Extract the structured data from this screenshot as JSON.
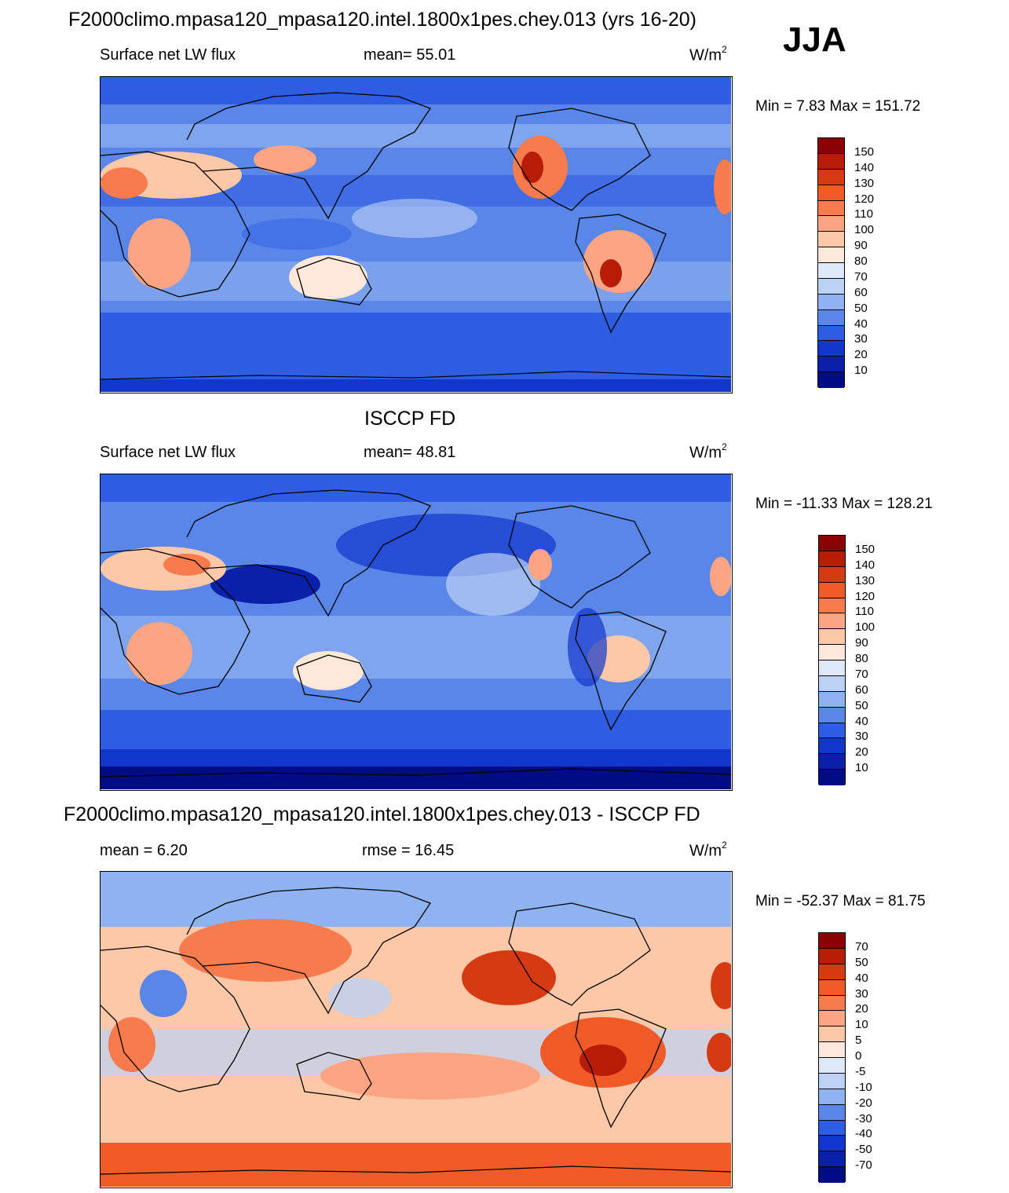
{
  "season": "JJA",
  "chart_data": [
    {
      "type": "heatmap",
      "title": "F2000climo.mpasa120_mpasa120.intel.1800x1pes.chey.013 (yrs 16-20)",
      "variable": "Surface net LW flux",
      "stat": "mean=  55.01",
      "units": "W/m",
      "units_sup": "2",
      "minmax": "Min =   7.83 Max = 151.72",
      "levels": [
        "150",
        "140",
        "130",
        "120",
        "110",
        "100",
        "90",
        "80",
        "70",
        "60",
        "50",
        "40",
        "30",
        "20",
        "10"
      ],
      "colors": [
        "#8b0000",
        "#b71c07",
        "#d63a11",
        "#ef5a27",
        "#f77b4c",
        "#fda583",
        "#fcc8a8",
        "#fde8d9",
        "#dde9f8",
        "#bcd2f5",
        "#8fb2f0",
        "#5a86ea",
        "#2e5de3",
        "#1036cc",
        "#0a20a8",
        "#000c82"
      ]
    },
    {
      "type": "heatmap",
      "title": "ISCCP FD",
      "variable": "Surface net LW flux",
      "stat": "mean=  48.81",
      "units": "W/m",
      "units_sup": "2",
      "minmax": "Min = -11.33 Max = 128.21",
      "levels": [
        "150",
        "140",
        "130",
        "120",
        "110",
        "100",
        "90",
        "80",
        "70",
        "60",
        "50",
        "40",
        "30",
        "20",
        "10"
      ],
      "colors": [
        "#8b0000",
        "#b71c07",
        "#d63a11",
        "#ef5a27",
        "#f77b4c",
        "#fda583",
        "#fcc8a8",
        "#fde8d9",
        "#dde9f8",
        "#bcd2f5",
        "#8fb2f0",
        "#5a86ea",
        "#2e5de3",
        "#1036cc",
        "#0a20a8",
        "#000c82"
      ]
    },
    {
      "type": "heatmap",
      "title": "F2000climo.mpasa120_mpasa120.intel.1800x1pes.chey.013 - ISCCP FD",
      "variable": "mean =   6.20",
      "stat": "rmse =  16.45",
      "units": "W/m",
      "units_sup": "2",
      "minmax": "Min = -52.37 Max =  81.75",
      "levels": [
        "70",
        "50",
        "40",
        "30",
        "20",
        "10",
        "5",
        "0",
        "-5",
        "-10",
        "-20",
        "-30",
        "-40",
        "-50",
        "-70"
      ],
      "colors": [
        "#8b0000",
        "#b71c07",
        "#d63a11",
        "#ef5a27",
        "#f77b4c",
        "#fda583",
        "#fcc8a8",
        "#fde8d9",
        "#dde9f8",
        "#bcd2f5",
        "#8fb2f0",
        "#5a86ea",
        "#2e5de3",
        "#1036cc",
        "#0a20a8",
        "#000c82"
      ]
    }
  ]
}
